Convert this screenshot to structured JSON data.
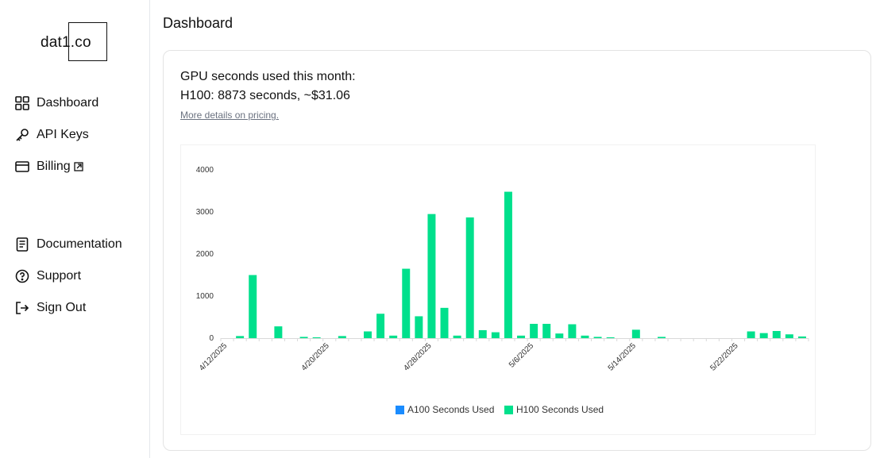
{
  "logo": {
    "text": "dat1.co"
  },
  "nav": {
    "dashboard": "Dashboard",
    "api_keys": "API Keys",
    "billing": "Billing",
    "documentation": "Documentation",
    "support": "Support",
    "sign_out": "Sign Out"
  },
  "page": {
    "title": "Dashboard"
  },
  "usage": {
    "title": "GPU seconds used this month:",
    "h100_line": "H100: 8873 seconds, ~$31.06",
    "pricing_link": "More details on pricing."
  },
  "colors": {
    "a100": "#1a8cff",
    "h100": "#00e08c",
    "accent": "#111111"
  },
  "chart_data": {
    "type": "bar",
    "ylim": [
      0,
      4000
    ],
    "yticks": [
      0,
      1000,
      2000,
      3000,
      4000
    ],
    "x_labels": [
      "4/12/2025",
      "4/20/2025",
      "4/28/2025",
      "5/6/2025",
      "5/14/2025",
      "5/22/2025"
    ],
    "x_label_positions": [
      0,
      8,
      16,
      24,
      32,
      40
    ],
    "legend": [
      "A100 Seconds Used",
      "H100 Seconds Used"
    ],
    "series": [
      {
        "name": "A100 Seconds Used",
        "values": [
          0,
          0,
          0,
          0,
          0,
          0,
          0,
          0,
          0,
          0,
          0,
          0,
          0,
          0,
          0,
          0,
          0,
          0,
          0,
          0,
          0,
          0,
          0,
          0,
          0,
          0,
          0,
          0,
          0,
          0,
          0,
          0,
          0,
          0,
          0,
          0,
          0,
          0,
          0,
          0,
          0,
          0,
          0,
          0,
          0,
          0
        ]
      },
      {
        "name": "H100 Seconds Used",
        "values": [
          0,
          50,
          1500,
          0,
          280,
          0,
          30,
          20,
          0,
          50,
          0,
          160,
          580,
          60,
          1650,
          520,
          2950,
          720,
          60,
          2870,
          190,
          140,
          3480,
          60,
          340,
          340,
          110,
          330,
          60,
          30,
          20,
          0,
          200,
          0,
          30,
          0,
          0,
          0,
          0,
          0,
          0,
          160,
          120,
          170,
          90,
          40
        ]
      }
    ]
  }
}
